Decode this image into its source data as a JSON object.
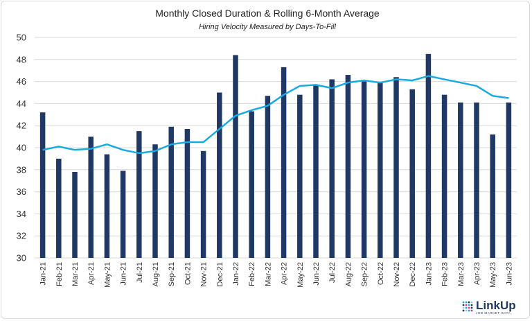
{
  "chart_data": {
    "type": "bar",
    "title": "Monthly Closed Duration & Rolling 6-Month Average",
    "subtitle": "Hiring Velocity Measured by Days-To-Fill",
    "xlabel": "",
    "ylabel": "",
    "ylim": [
      30,
      50
    ],
    "yticks": [
      30,
      32,
      34,
      36,
      38,
      40,
      42,
      44,
      46,
      48,
      50
    ],
    "grid": true,
    "categories": [
      "Jan-21",
      "Feb-21",
      "Mar-21",
      "Apr-21",
      "May-21",
      "Jun-21",
      "Jul-21",
      "Aug-21",
      "Sep-21",
      "Oct-21",
      "Nov-21",
      "Dec-21",
      "Jan-22",
      "Feb-22",
      "Mar-22",
      "Apr-22",
      "May-22",
      "Jun-22",
      "Jul-22",
      "Aug-22",
      "Sep-22",
      "Oct-22",
      "Nov-22",
      "Dec-22",
      "Jan-23",
      "Feb-23",
      "Mar-23",
      "Apr-23",
      "May-23",
      "Jun-23"
    ],
    "series": [
      {
        "type": "bar",
        "color": "#1f3864",
        "values": [
          43.2,
          39.0,
          37.8,
          41.0,
          39.4,
          37.9,
          41.5,
          40.3,
          41.9,
          41.7,
          39.7,
          45.0,
          48.4,
          43.3,
          44.7,
          47.3,
          44.8,
          45.7,
          46.2,
          46.6,
          46.0,
          45.9,
          46.4,
          45.3,
          48.5,
          44.8,
          44.1,
          44.1,
          41.2,
          44.1
        ]
      },
      {
        "type": "line",
        "color": "#1aaae2",
        "values": [
          39.8,
          40.1,
          39.8,
          39.9,
          40.3,
          39.8,
          39.5,
          39.7,
          40.3,
          40.5,
          40.5,
          41.7,
          42.9,
          43.4,
          43.8,
          44.8,
          45.6,
          45.7,
          45.4,
          45.9,
          46.1,
          45.9,
          46.2,
          46.1,
          46.5,
          46.2,
          45.9,
          45.6,
          44.7,
          44.5
        ]
      }
    ]
  },
  "logo": {
    "name": "LinkUp",
    "tagline": "JOB MARKET DATA",
    "color": "#1f3864",
    "dot_colors": [
      "#1aaae2",
      "#1f3864",
      "#e8356d",
      "#9bcbeb"
    ]
  }
}
